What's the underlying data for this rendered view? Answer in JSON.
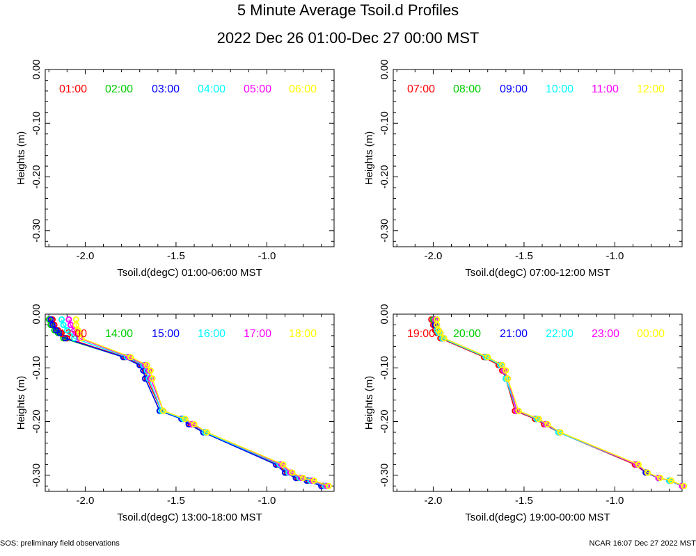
{
  "title": "5 Minute Average Tsoil.d Profiles",
  "subtitle": "2022 Dec 26 01:00-Dec 27 00:00 MST",
  "footer_left": "SOS: preliminary field observations",
  "footer_right": "NCAR 16:07 Dec 27 2022 MST",
  "chart_data": [
    {
      "type": "line",
      "xlabel": "Tsoil.d(degC) 01:00-06:00 MST",
      "ylabel": "Heights (m)",
      "xlim": [
        -2.22,
        -0.63
      ],
      "ylim": [
        -0.33,
        0.0
      ],
      "x_ticks": [
        -2.0,
        -1.5,
        -1.0
      ],
      "x_tick_labels": [
        "-2.0",
        "-1.5",
        "-1.0"
      ],
      "y_ticks": [
        0.0,
        -0.1,
        -0.2,
        -0.3
      ],
      "y_tick_labels": [
        "0.00",
        "-0.10",
        "-0.20",
        "-0.30"
      ],
      "legend": [
        {
          "label": "01:00",
          "color": "#ff0000"
        },
        {
          "label": "02:00",
          "color": "#00cc00"
        },
        {
          "label": "03:00",
          "color": "#0000ff"
        },
        {
          "label": "04:00",
          "color": "#00ffff"
        },
        {
          "label": "05:00",
          "color": "#ff00ff"
        },
        {
          "label": "06:00",
          "color": "#ffff00"
        }
      ],
      "series": []
    },
    {
      "type": "line",
      "xlabel": "Tsoil.d(degC) 07:00-12:00 MST",
      "ylabel": "Heights (m)",
      "xlim": [
        -2.22,
        -0.63
      ],
      "ylim": [
        -0.33,
        0.0
      ],
      "x_ticks": [
        -2.0,
        -1.5,
        -1.0
      ],
      "x_tick_labels": [
        "-2.0",
        "-1.5",
        "-1.0"
      ],
      "y_ticks": [
        0.0,
        -0.1,
        -0.2,
        -0.3
      ],
      "y_tick_labels": [
        "0.00",
        "-0.10",
        "-0.20",
        "-0.30"
      ],
      "legend": [
        {
          "label": "07:00",
          "color": "#ff0000"
        },
        {
          "label": "08:00",
          "color": "#00cc00"
        },
        {
          "label": "09:00",
          "color": "#0000ff"
        },
        {
          "label": "10:00",
          "color": "#00ffff"
        },
        {
          "label": "11:00",
          "color": "#ff00ff"
        },
        {
          "label": "12:00",
          "color": "#ffff00"
        }
      ],
      "series": []
    },
    {
      "type": "line",
      "xlabel": "Tsoil.d(degC) 13:00-18:00 MST",
      "ylabel": "Heights (m)",
      "xlim": [
        -2.22,
        -0.63
      ],
      "ylim": [
        -0.33,
        0.0
      ],
      "x_ticks": [
        -2.0,
        -1.5,
        -1.0
      ],
      "x_tick_labels": [
        "-2.0",
        "-1.5",
        "-1.0"
      ],
      "y_ticks": [
        0.0,
        -0.1,
        -0.2,
        -0.3
      ],
      "y_tick_labels": [
        "0.00",
        "-0.10",
        "-0.20",
        "-0.30"
      ],
      "legend": [
        {
          "label": "13:00",
          "color": "#ff0000"
        },
        {
          "label": "14:00",
          "color": "#00cc00"
        },
        {
          "label": "15:00",
          "color": "#0000ff"
        },
        {
          "label": "16:00",
          "color": "#00ffff"
        },
        {
          "label": "17:00",
          "color": "#ff00ff"
        },
        {
          "label": "18:00",
          "color": "#ffff00"
        }
      ],
      "series": [
        {
          "name": "13:00",
          "color": "#ff0000",
          "x": [
            -2.18,
            -2.17,
            -2.15,
            -2.13,
            -2.1,
            -1.78,
            -1.69,
            -1.67,
            -1.66,
            -1.58,
            -1.46,
            -1.42,
            -1.34,
            -0.94,
            -0.89,
            -0.83,
            -0.77,
            -0.69
          ],
          "y": [
            -0.01,
            -0.02,
            -0.03,
            -0.035,
            -0.045,
            -0.08,
            -0.095,
            -0.105,
            -0.12,
            -0.18,
            -0.195,
            -0.205,
            -0.22,
            -0.28,
            -0.295,
            -0.305,
            -0.31,
            -0.32
          ]
        },
        {
          "name": "14:00",
          "color": "#00cc00",
          "x": [
            -2.2,
            -2.19,
            -2.17,
            -2.15,
            -2.12,
            -1.79,
            -1.7,
            -1.68,
            -1.67,
            -1.59,
            -1.47,
            -1.43,
            -1.35,
            -0.95,
            -0.9,
            -0.84,
            -0.78,
            -0.7
          ],
          "y": [
            -0.01,
            -0.02,
            -0.03,
            -0.035,
            -0.045,
            -0.08,
            -0.095,
            -0.105,
            -0.12,
            -0.18,
            -0.195,
            -0.205,
            -0.22,
            -0.28,
            -0.295,
            -0.305,
            -0.31,
            -0.32
          ]
        },
        {
          "name": "15:00",
          "color": "#0000ff",
          "x": [
            -2.19,
            -2.18,
            -2.16,
            -2.14,
            -2.11,
            -1.79,
            -1.7,
            -1.68,
            -1.67,
            -1.59,
            -1.47,
            -1.43,
            -1.35,
            -0.95,
            -0.9,
            -0.84,
            -0.78,
            -0.7
          ],
          "y": [
            -0.01,
            -0.02,
            -0.03,
            -0.035,
            -0.045,
            -0.08,
            -0.095,
            -0.105,
            -0.12,
            -0.18,
            -0.195,
            -0.205,
            -0.22,
            -0.28,
            -0.295,
            -0.305,
            -0.31,
            -0.32
          ]
        },
        {
          "name": "16:00",
          "color": "#00ffff",
          "x": [
            -2.13,
            -2.12,
            -2.1,
            -2.08,
            -2.06,
            -1.77,
            -1.68,
            -1.66,
            -1.65,
            -1.58,
            -1.46,
            -1.41,
            -1.34,
            -0.93,
            -0.88,
            -0.82,
            -0.76,
            -0.68
          ],
          "y": [
            -0.01,
            -0.02,
            -0.03,
            -0.035,
            -0.045,
            -0.08,
            -0.095,
            -0.105,
            -0.12,
            -0.18,
            -0.195,
            -0.205,
            -0.22,
            -0.28,
            -0.295,
            -0.305,
            -0.31,
            -0.32
          ]
        },
        {
          "name": "17:00",
          "color": "#ff00ff",
          "x": [
            -2.09,
            -2.08,
            -2.06,
            -2.05,
            -2.03,
            -1.76,
            -1.67,
            -1.65,
            -1.64,
            -1.57,
            -1.45,
            -1.41,
            -1.33,
            -0.92,
            -0.87,
            -0.81,
            -0.75,
            -0.67
          ],
          "y": [
            -0.01,
            -0.02,
            -0.03,
            -0.035,
            -0.045,
            -0.08,
            -0.095,
            -0.105,
            -0.12,
            -0.18,
            -0.195,
            -0.205,
            -0.22,
            -0.28,
            -0.295,
            -0.305,
            -0.31,
            -0.32
          ]
        },
        {
          "name": "18:00",
          "color": "#ffff00",
          "x": [
            -2.05,
            -2.05,
            -2.04,
            -2.03,
            -2.02,
            -1.75,
            -1.66,
            -1.64,
            -1.63,
            -1.57,
            -1.45,
            -1.4,
            -1.33,
            -0.91,
            -0.86,
            -0.8,
            -0.74,
            -0.66
          ],
          "y": [
            -0.01,
            -0.02,
            -0.03,
            -0.035,
            -0.045,
            -0.08,
            -0.095,
            -0.105,
            -0.12,
            -0.18,
            -0.195,
            -0.205,
            -0.22,
            -0.28,
            -0.295,
            -0.305,
            -0.31,
            -0.32
          ]
        }
      ]
    },
    {
      "type": "line",
      "xlabel": "Tsoil.d(degC) 19:00-00:00 MST",
      "ylabel": "Heights (m)",
      "xlim": [
        -2.22,
        -0.63
      ],
      "ylim": [
        -0.33,
        0.0
      ],
      "x_ticks": [
        -2.0,
        -1.5,
        -1.0
      ],
      "x_tick_labels": [
        "-2.0",
        "-1.5",
        "-1.0"
      ],
      "y_ticks": [
        0.0,
        -0.1,
        -0.2,
        -0.3
      ],
      "y_tick_labels": [
        "0.00",
        "-0.10",
        "-0.20",
        "-0.30"
      ],
      "legend": [
        {
          "label": "19:00",
          "color": "#ff0000"
        },
        {
          "label": "20:00",
          "color": "#00cc00"
        },
        {
          "label": "21:00",
          "color": "#0000ff"
        },
        {
          "label": "22:00",
          "color": "#00ffff"
        },
        {
          "label": "23:00",
          "color": "#ff00ff"
        },
        {
          "label": "00:00",
          "color": "#ffff00"
        }
      ],
      "series": [
        {
          "name": "19:00",
          "color": "#ff0000",
          "x": [
            -2.01,
            -2.0,
            -1.99,
            -1.98,
            -1.96,
            -1.72,
            -1.64,
            -1.62,
            -1.6,
            -1.55,
            -1.44,
            -1.39,
            -1.31,
            -0.89,
            -0.83,
            -0.76,
            -0.7,
            -0.63
          ],
          "y": [
            -0.01,
            -0.02,
            -0.03,
            -0.035,
            -0.045,
            -0.08,
            -0.095,
            -0.105,
            -0.12,
            -0.18,
            -0.195,
            -0.205,
            -0.22,
            -0.28,
            -0.295,
            -0.305,
            -0.31,
            -0.32
          ]
        },
        {
          "name": "20:00",
          "color": "#00cc00",
          "x": [
            -2.0,
            -1.99,
            -1.98,
            -1.97,
            -1.95,
            -1.71,
            -1.63,
            -1.61,
            -1.6,
            -1.54,
            -1.43,
            -1.38,
            -1.31,
            -0.88,
            -0.83,
            -0.76,
            -0.7,
            -0.63
          ],
          "y": [
            -0.01,
            -0.02,
            -0.03,
            -0.035,
            -0.045,
            -0.08,
            -0.095,
            -0.105,
            -0.12,
            -0.18,
            -0.195,
            -0.205,
            -0.22,
            -0.28,
            -0.295,
            -0.305,
            -0.31,
            -0.32
          ]
        },
        {
          "name": "21:00",
          "color": "#0000ff",
          "x": [
            -1.99,
            -1.99,
            -1.98,
            -1.97,
            -1.95,
            -1.71,
            -1.63,
            -1.61,
            -1.6,
            -1.54,
            -1.43,
            -1.38,
            -1.31,
            -0.88,
            -0.83,
            -0.76,
            -0.7,
            -0.63
          ],
          "y": [
            -0.01,
            -0.02,
            -0.03,
            -0.035,
            -0.045,
            -0.08,
            -0.095,
            -0.105,
            -0.12,
            -0.18,
            -0.195,
            -0.205,
            -0.22,
            -0.28,
            -0.295,
            -0.305,
            -0.31,
            -0.32
          ]
        },
        {
          "name": "22:00",
          "color": "#00ffff",
          "x": [
            -1.99,
            -1.98,
            -1.98,
            -1.97,
            -1.95,
            -1.71,
            -1.63,
            -1.61,
            -1.6,
            -1.54,
            -1.43,
            -1.38,
            -1.31,
            -0.88,
            -0.82,
            -0.76,
            -0.7,
            -0.63
          ],
          "y": [
            -0.01,
            -0.02,
            -0.03,
            -0.035,
            -0.045,
            -0.08,
            -0.095,
            -0.105,
            -0.12,
            -0.18,
            -0.195,
            -0.205,
            -0.22,
            -0.28,
            -0.295,
            -0.305,
            -0.31,
            -0.32
          ]
        },
        {
          "name": "23:00",
          "color": "#ff00ff",
          "x": [
            -1.99,
            -1.98,
            -1.97,
            -1.96,
            -1.94,
            -1.7,
            -1.62,
            -1.61,
            -1.59,
            -1.54,
            -1.42,
            -1.38,
            -1.3,
            -0.88,
            -0.82,
            -0.76,
            -0.69,
            -0.63
          ],
          "y": [
            -0.01,
            -0.02,
            -0.03,
            -0.035,
            -0.045,
            -0.08,
            -0.095,
            -0.105,
            -0.12,
            -0.18,
            -0.195,
            -0.205,
            -0.22,
            -0.28,
            -0.295,
            -0.305,
            -0.31,
            -0.32
          ]
        },
        {
          "name": "00:00",
          "color": "#ffff00",
          "x": [
            -1.98,
            -1.98,
            -1.97,
            -1.96,
            -1.94,
            -1.7,
            -1.62,
            -1.6,
            -1.59,
            -1.53,
            -1.42,
            -1.37,
            -1.3,
            -0.87,
            -0.82,
            -0.75,
            -0.69,
            -0.62
          ],
          "y": [
            -0.01,
            -0.02,
            -0.03,
            -0.035,
            -0.045,
            -0.08,
            -0.095,
            -0.105,
            -0.12,
            -0.18,
            -0.195,
            -0.205,
            -0.22,
            -0.28,
            -0.295,
            -0.305,
            -0.31,
            -0.32
          ]
        }
      ]
    }
  ]
}
